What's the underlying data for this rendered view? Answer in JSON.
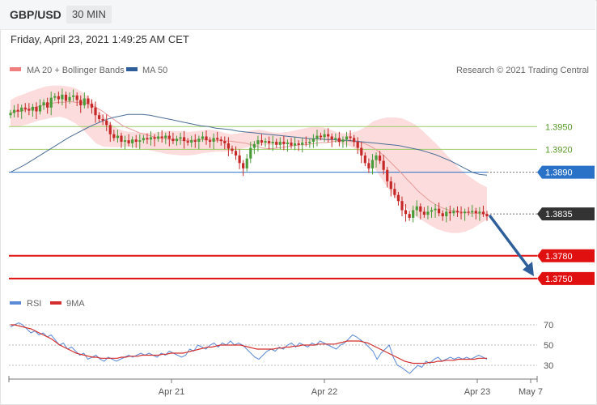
{
  "header": {
    "pair": "GBP/USD",
    "timeframe": "30 MIN"
  },
  "datetime": "Friday, April 23, 2021 1:49:25 AM CET",
  "legend": {
    "ma20": {
      "label": "MA 20 + Bollinger Bands",
      "color": "#f08080"
    },
    "ma50": {
      "label": "MA 50",
      "color": "#2f5f9a"
    }
  },
  "credit": "Research © 2021 Trading Central",
  "colors": {
    "up": "#4a9c3a",
    "down": "#c62828",
    "band": "#fbd6d6",
    "ma20": "#e89a9a",
    "ma50": "#4d6e96",
    "support": "#e01010",
    "resistance": "#9ccc65",
    "pivot": "#2a72c8",
    "current": "#333333",
    "arrow": "#2f5f9a",
    "rsi": "#5b8ad6",
    "rsi_ma": "#d32f2f"
  },
  "chart_data": [
    {
      "type": "candlestick",
      "ylim": [
        1.3735,
        1.401
      ],
      "levels": [
        {
          "label": "1.3950",
          "value": 1.395,
          "kind": "resistance",
          "text_color": "#5a9a2a"
        },
        {
          "label": "1.3920",
          "value": 1.392,
          "kind": "resistance",
          "text_color": "#5a9a2a"
        },
        {
          "label": "1.3890",
          "value": 1.389,
          "kind": "pivot",
          "text_color": "#ffffff"
        },
        {
          "label": "1.3835",
          "value": 1.3835,
          "kind": "current",
          "text_color": "#ffffff"
        },
        {
          "label": "1.3780",
          "value": 1.378,
          "kind": "support",
          "text_color": "#ffffff"
        },
        {
          "label": "1.3750",
          "value": 1.375,
          "kind": "support",
          "text_color": "#ffffff"
        }
      ],
      "x_ticks": [
        "Apr 21",
        "Apr 22",
        "Apr 23",
        "May 7"
      ],
      "forecast_arrow": {
        "from": 1.3832,
        "to": 1.3751
      },
      "closes": [
        1.3968,
        1.3972,
        1.397,
        1.3975,
        1.3973,
        1.3971,
        1.3976,
        1.397,
        1.3978,
        1.3982,
        1.3975,
        1.3988,
        1.399,
        1.3986,
        1.3992,
        1.3984,
        1.3989,
        1.3991,
        1.3985,
        1.3978,
        1.3987,
        1.398,
        1.3975,
        1.3965,
        1.396,
        1.3958,
        1.3952,
        1.394,
        1.3935,
        1.3938,
        1.393,
        1.3932,
        1.3928,
        1.3933,
        1.393,
        1.3932,
        1.3935,
        1.3933,
        1.3936,
        1.3934,
        1.3937,
        1.3935,
        1.3938,
        1.3934,
        1.3931,
        1.3934,
        1.3936,
        1.3931,
        1.3929,
        1.3932,
        1.393,
        1.3934,
        1.3937,
        1.3932,
        1.393,
        1.3935,
        1.3933,
        1.3931,
        1.3928,
        1.3921,
        1.3918,
        1.3912,
        1.3902,
        1.3895,
        1.3908,
        1.3922,
        1.3927,
        1.3932,
        1.3929,
        1.3931,
        1.3928,
        1.393,
        1.3926,
        1.393,
        1.3927,
        1.3929,
        1.3925,
        1.3928,
        1.3926,
        1.3929,
        1.3928,
        1.393,
        1.3934,
        1.3938,
        1.3936,
        1.394,
        1.3937,
        1.3933,
        1.3935,
        1.393,
        1.3933,
        1.3937,
        1.3935,
        1.393,
        1.3922,
        1.3912,
        1.3902,
        1.3895,
        1.3906,
        1.3912,
        1.3905,
        1.3893,
        1.3878,
        1.3868,
        1.386,
        1.3852,
        1.384,
        1.3835,
        1.383,
        1.384,
        1.3845,
        1.3838,
        1.3834,
        1.3838,
        1.384,
        1.3842,
        1.3836,
        1.3832,
        1.3838,
        1.3836,
        1.3839,
        1.3837,
        1.3836,
        1.3838,
        1.3837,
        1.3839,
        1.3836,
        1.3838,
        1.3835,
        1.3832
      ],
      "ma20": [
        1.3968,
        1.397,
        1.397,
        1.3973,
        1.3974,
        1.3976,
        1.3978,
        1.398,
        1.3981,
        1.3982,
        1.3982,
        1.3983,
        1.3982,
        1.3982,
        1.3981,
        1.3978,
        1.3975,
        1.3971,
        1.3966,
        1.3961,
        1.3956,
        1.3951,
        1.3948,
        1.3945,
        1.3942,
        1.394,
        1.3938,
        1.3936,
        1.3935,
        1.3934,
        1.3933,
        1.3933,
        1.3932,
        1.3932,
        1.3932,
        1.3933,
        1.3933,
        1.3933,
        1.3932,
        1.3932,
        1.3931,
        1.3931,
        1.393,
        1.3929,
        1.3928,
        1.3926,
        1.3924,
        1.3922,
        1.3921,
        1.3921,
        1.3922,
        1.3923,
        1.3924,
        1.3925,
        1.3926,
        1.3926,
        1.3927,
        1.3928,
        1.3929,
        1.3929,
        1.393,
        1.3931,
        1.3932,
        1.3931,
        1.393,
        1.393,
        1.3928,
        1.3925,
        1.3921,
        1.3916,
        1.391,
        1.3903,
        1.3896,
        1.3889,
        1.3881,
        1.3874,
        1.3866,
        1.386,
        1.3854,
        1.3849,
        1.3845,
        1.3842,
        1.384,
        1.3839,
        1.3838,
        1.3837,
        1.3836,
        1.3836,
        1.3835,
        1.3835
      ],
      "ma20_x_start": 0,
      "band_upper": [
        1.3985,
        1.399,
        1.3993,
        1.3997,
        1.4,
        1.4003,
        1.4004,
        1.4004,
        1.4003,
        1.4001,
        1.3996,
        1.3988,
        1.3978,
        1.3965,
        1.3955,
        1.3948,
        1.3944,
        1.3943,
        1.3942,
        1.3942,
        1.3942,
        1.3943,
        1.3944,
        1.3944,
        1.3944,
        1.3943,
        1.3944,
        1.3945,
        1.3946,
        1.3945,
        1.3942,
        1.394,
        1.3941,
        1.3943,
        1.3945,
        1.3946,
        1.3944,
        1.3942,
        1.3942,
        1.3943,
        1.3945,
        1.3947,
        1.3949,
        1.395,
        1.3949,
        1.3946,
        1.3942,
        1.3941,
        1.3942,
        1.3945,
        1.395,
        1.3957,
        1.396,
        1.3962,
        1.3962,
        1.3961,
        1.3957,
        1.3952,
        1.3944,
        1.3935,
        1.3926,
        1.3916,
        1.3906,
        1.3896,
        1.3888,
        1.3881,
        1.3875,
        1.387
      ],
      "band_lower": [
        1.395,
        1.395,
        1.3952,
        1.3955,
        1.3958,
        1.396,
        1.3962,
        1.3963,
        1.396,
        1.3955,
        1.3948,
        1.3938,
        1.3928,
        1.3924,
        1.3923,
        1.3923,
        1.3924,
        1.3923,
        1.3922,
        1.392,
        1.3918,
        1.3916,
        1.3914,
        1.3913,
        1.3912,
        1.3912,
        1.3913,
        1.3915,
        1.3916,
        1.3917,
        1.3917,
        1.3918,
        1.392,
        1.3922,
        1.3924,
        1.3925,
        1.3926,
        1.3926,
        1.3926,
        1.3927,
        1.3928,
        1.3929,
        1.393,
        1.3931,
        1.3932,
        1.3931,
        1.3929,
        1.3926,
        1.3923,
        1.3918,
        1.391,
        1.3898,
        1.3884,
        1.387,
        1.3858,
        1.3848,
        1.384,
        1.3832,
        1.3826,
        1.382,
        1.3815,
        1.3812,
        1.381,
        1.381,
        1.3812,
        1.3816,
        1.3822,
        1.3828
      ],
      "ma50": [
        1.389,
        1.3895,
        1.39,
        1.3906,
        1.3912,
        1.3918,
        1.3924,
        1.393,
        1.3936,
        1.3941,
        1.3946,
        1.3951,
        1.3955,
        1.3959,
        1.3962,
        1.3964,
        1.3966,
        1.3966,
        1.3966,
        1.3965,
        1.3963,
        1.3961,
        1.3959,
        1.3957,
        1.3955,
        1.3953,
        1.3951,
        1.395,
        1.3948,
        1.3947,
        1.3946,
        1.3944,
        1.3943,
        1.3942,
        1.3941,
        1.394,
        1.3939,
        1.3938,
        1.3937,
        1.3936,
        1.3935,
        1.3934,
        1.3934,
        1.3933,
        1.3933,
        1.3932,
        1.3932,
        1.3931,
        1.393,
        1.3929,
        1.3928,
        1.3927,
        1.3926,
        1.3925,
        1.3923,
        1.3921,
        1.3919,
        1.3916,
        1.3913,
        1.3909,
        1.3905,
        1.39,
        1.3895,
        1.389,
        1.3887,
        1.3886
      ]
    },
    {
      "type": "line",
      "title": "",
      "legend": [
        {
          "name": "RSI",
          "color": "#5b8ad6"
        },
        {
          "name": "9MA",
          "color": "#d32f2f"
        }
      ],
      "ylim": [
        18,
        82
      ],
      "y_ticks": [
        70,
        50,
        30
      ],
      "rsi": [
        68,
        70,
        72,
        70,
        66,
        62,
        64,
        60,
        62,
        58,
        60,
        55,
        50,
        52,
        46,
        48,
        44,
        40,
        42,
        36,
        38,
        40,
        36,
        34,
        38,
        36,
        34,
        36,
        38,
        40,
        38,
        40,
        42,
        40,
        42,
        40,
        38,
        42,
        40,
        44,
        42,
        40,
        38,
        40,
        46,
        44,
        50,
        48,
        46,
        50,
        52,
        48,
        52,
        50,
        54,
        50,
        52,
        50,
        46,
        42,
        38,
        36,
        40,
        44,
        46,
        44,
        48,
        46,
        50,
        52,
        48,
        52,
        50,
        48,
        52,
        50,
        54,
        52,
        50,
        48,
        46,
        50,
        52,
        56,
        60,
        58,
        55,
        52,
        48,
        44,
        36,
        42,
        46,
        50,
        38,
        30,
        28,
        25,
        22,
        26,
        30,
        28,
        34,
        32,
        36,
        38,
        34,
        36,
        38,
        36,
        38,
        36,
        38,
        36,
        38,
        40,
        38,
        36
      ],
      "rsi_ma": [
        70,
        70,
        69,
        68,
        67,
        66,
        64,
        62,
        60,
        58,
        56,
        53,
        50,
        48,
        46,
        44,
        42,
        41,
        40,
        39,
        38,
        38,
        37,
        37,
        37,
        37,
        37,
        38,
        38,
        39,
        39,
        39,
        40,
        40,
        40,
        40,
        40,
        41,
        41,
        42,
        42,
        42,
        42,
        43,
        44,
        45,
        46,
        47,
        48,
        48,
        49,
        50,
        50,
        50,
        50,
        50,
        50,
        49,
        48,
        47,
        46,
        46,
        46,
        46,
        46,
        47,
        47,
        48,
        48,
        49,
        49,
        50,
        50,
        50,
        50,
        51,
        51,
        51,
        51,
        51,
        52,
        53,
        54,
        54,
        54,
        54,
        53,
        52,
        50,
        48,
        46,
        44,
        42,
        40,
        38,
        36,
        34,
        33,
        32,
        32,
        32,
        32,
        33,
        33,
        34,
        34,
        35,
        35,
        35,
        36,
        36,
        36,
        36,
        36,
        37,
        37,
        37
      ]
    }
  ]
}
